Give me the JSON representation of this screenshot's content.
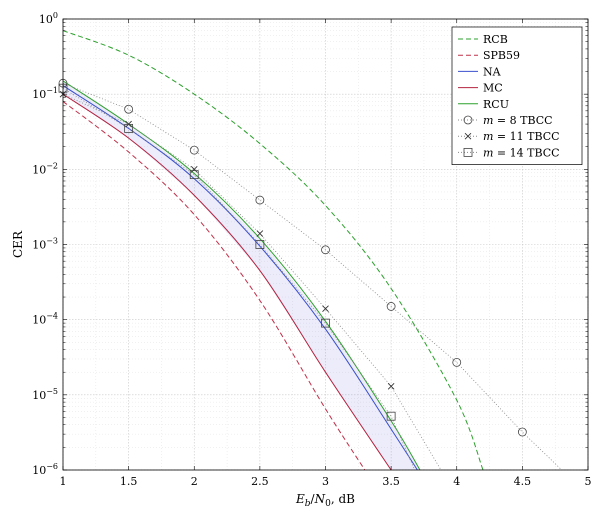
{
  "chart_data": {
    "type": "line",
    "xlabel": "E_b/N_0, dB",
    "ylabel": "CER",
    "xlim": [
      1,
      5
    ],
    "ylim_log10": [
      -6,
      0
    ],
    "y_scale": "log",
    "grid": true,
    "legend_position": "top-right",
    "x_ticks": [
      "1",
      "1.5",
      "2",
      "2.5",
      "3",
      "3.5",
      "4",
      "4.5",
      "5"
    ],
    "y_ticks": [
      {
        "base": "10",
        "exp": "0"
      },
      {
        "base": "10",
        "exp": "−1"
      },
      {
        "base": "10",
        "exp": "−2"
      },
      {
        "base": "10",
        "exp": "−3"
      },
      {
        "base": "10",
        "exp": "−4"
      },
      {
        "base": "10",
        "exp": "−5"
      },
      {
        "base": "10",
        "exp": "−6"
      }
    ],
    "shaded_region": {
      "between": [
        "MC",
        "RCU"
      ],
      "color": "#6666dd",
      "opacity": 0.12
    },
    "series": [
      {
        "name": "RCB",
        "color": "#2ca02c",
        "dash": "5,3",
        "marker": "none",
        "x": [
          1,
          1.5,
          2,
          2.5,
          3,
          3.5,
          4,
          4.2
        ],
        "y": [
          0.7,
          0.33,
          0.1,
          0.022,
          0.0033,
          0.00026,
          8.5e-06,
          1e-06
        ]
      },
      {
        "name": "SPB59",
        "color": "#c0304a",
        "dash": "5,3",
        "marker": "none",
        "x": [
          1,
          1.5,
          2,
          2.5,
          3,
          3.3
        ],
        "y": [
          0.08,
          0.017,
          0.0025,
          0.00018,
          6.5e-06,
          1e-06
        ]
      },
      {
        "name": "NA",
        "color": "#3a4fcc",
        "dash": "",
        "marker": "none",
        "x": [
          1,
          1.5,
          2,
          2.5,
          3,
          3.5,
          3.7
        ],
        "y": [
          0.13,
          0.035,
          0.0075,
          0.00095,
          7.5e-05,
          3.5e-06,
          1e-06
        ]
      },
      {
        "name": "MC",
        "color": "#b2223f",
        "dash": "",
        "marker": "none",
        "x": [
          1,
          1.5,
          2,
          2.5,
          3,
          3.5
        ],
        "y": [
          0.1,
          0.026,
          0.0045,
          0.00045,
          2e-05,
          1e-06
        ]
      },
      {
        "name": "RCU",
        "color": "#2ca02c",
        "dash": "",
        "marker": "none",
        "x": [
          1,
          1.5,
          2,
          2.5,
          3,
          3.5,
          3.72
        ],
        "y": [
          0.15,
          0.04,
          0.0088,
          0.0012,
          9.5e-05,
          4.5e-06,
          1e-06
        ]
      },
      {
        "name": "m = 8 TBCC",
        "label_math": "m",
        "label_rest": " = 8 TBCC",
        "color": "#888888",
        "dash": "1,2",
        "marker": "circle",
        "marker_color": "#444444",
        "x": [
          1,
          1.5,
          2,
          2.5,
          3,
          3.5,
          4,
          4.5,
          4.8
        ],
        "y": [
          0.14,
          0.063,
          0.018,
          0.0039,
          0.00085,
          0.00015,
          2.7e-05,
          3.2e-06,
          1e-06
        ]
      },
      {
        "name": "m = 11 TBCC",
        "label_math": "m",
        "label_rest": " = 11 TBCC",
        "color": "#888888",
        "dash": "1,2",
        "marker": "cross",
        "marker_color": "#333333",
        "x": [
          1,
          1.5,
          2,
          2.5,
          3,
          3.5,
          3.88
        ],
        "y": [
          0.1,
          0.04,
          0.01,
          0.0014,
          0.00014,
          1.3e-05,
          1e-06
        ]
      },
      {
        "name": "m = 14 TBCC",
        "label_math": "m",
        "label_rest": " = 14 TBCC",
        "color": "#888888",
        "dash": "1,2",
        "marker": "square",
        "marker_color": "#444444",
        "x": [
          1,
          1.5,
          2,
          2.5,
          3,
          3.5,
          3.68
        ],
        "y": [
          0.12,
          0.035,
          0.0085,
          0.001,
          9e-05,
          5.2e-06,
          1e-06
        ]
      }
    ]
  }
}
